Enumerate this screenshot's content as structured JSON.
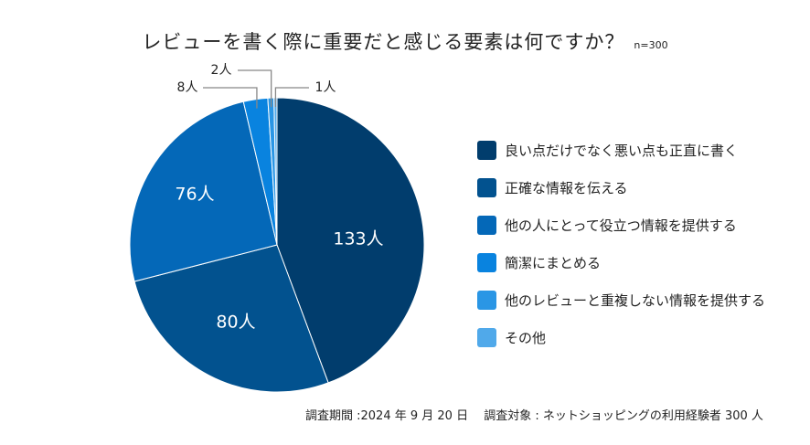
{
  "chart_data": {
    "type": "pie",
    "title": "レビューを書く際に重要だと感じる要素は何ですか？",
    "subtitle": "n=300",
    "unit": "人",
    "legend_position": "right",
    "categories": [
      "良い点だけでなく悪い点も正直に書く",
      "正確な情報を伝える",
      "他の人にとって役立つ情報を提供する",
      "簡潔にまとめる",
      "他のレビューと重複しない情報を提供する",
      "その他"
    ],
    "values": [
      133,
      80,
      76,
      8,
      2,
      1
    ],
    "data_labels": [
      "133人",
      "80人",
      "76人",
      "8人",
      "2人",
      "1人"
    ],
    "colors": [
      "#013d6d",
      "#02528f",
      "#0468b8",
      "#0983df",
      "#2a96e5",
      "#50a9ea"
    ]
  },
  "footer": "調査期間 :2024 年 9 月 20 日　 調査対象 : ネットショッピングの利用経験者 300 人"
}
